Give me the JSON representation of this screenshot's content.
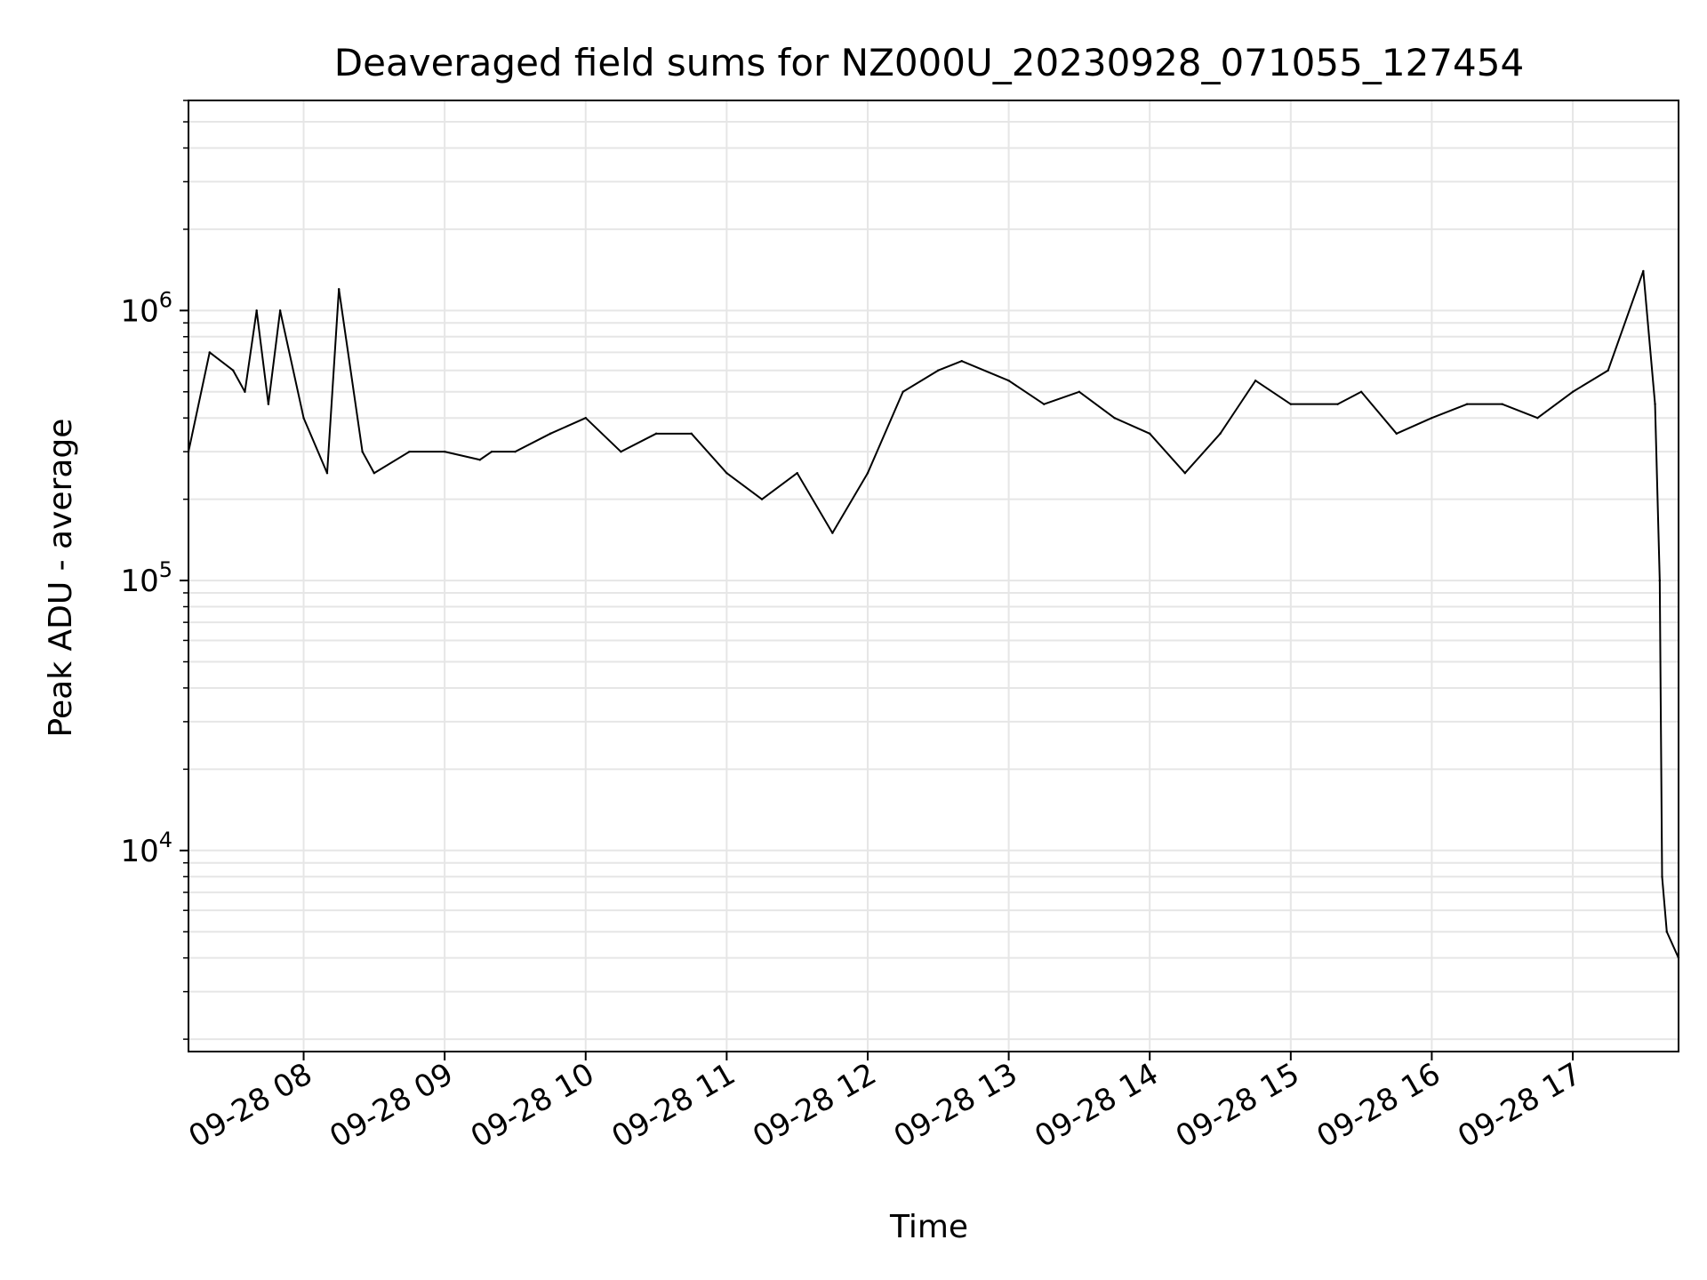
{
  "chart_data": {
    "type": "line",
    "title": "Deaveraged field sums for NZ000U_20230928_071055_127454",
    "xlabel": "Time",
    "ylabel": "Peak ADU - average",
    "yscale": "log",
    "ylim": [
      1800,
      6000000
    ],
    "xlim": [
      "2023-09-28 07:11",
      "2023-09-28 17:45"
    ],
    "grid": true,
    "line_color": "#000000",
    "grid_color": "#e6e6e6",
    "x_ticks": [
      {
        "t": "2023-09-28 08:00",
        "label": "09-28 08"
      },
      {
        "t": "2023-09-28 09:00",
        "label": "09-28 09"
      },
      {
        "t": "2023-09-28 10:00",
        "label": "09-28 10"
      },
      {
        "t": "2023-09-28 11:00",
        "label": "09-28 11"
      },
      {
        "t": "2023-09-28 12:00",
        "label": "09-28 12"
      },
      {
        "t": "2023-09-28 13:00",
        "label": "09-28 13"
      },
      {
        "t": "2023-09-28 14:00",
        "label": "09-28 14"
      },
      {
        "t": "2023-09-28 15:00",
        "label": "09-28 15"
      },
      {
        "t": "2023-09-28 16:00",
        "label": "09-28 16"
      },
      {
        "t": "2023-09-28 17:00",
        "label": "09-28 17"
      }
    ],
    "y_ticks": [
      {
        "value": 10000,
        "base": "10",
        "exp": "4"
      },
      {
        "value": 100000,
        "base": "10",
        "exp": "5"
      },
      {
        "value": 1000000,
        "base": "10",
        "exp": "6"
      }
    ],
    "series": [
      {
        "x": [
          "2023-09-28 07:11",
          "2023-09-28 07:20",
          "2023-09-28 07:30",
          "2023-09-28 07:35",
          "2023-09-28 07:40",
          "2023-09-28 07:45",
          "2023-09-28 07:50",
          "2023-09-28 08:00",
          "2023-09-28 08:10",
          "2023-09-28 08:15",
          "2023-09-28 08:25",
          "2023-09-28 08:30",
          "2023-09-28 08:45",
          "2023-09-28 09:00",
          "2023-09-28 09:15",
          "2023-09-28 09:20",
          "2023-09-28 09:30",
          "2023-09-28 09:45",
          "2023-09-28 10:00",
          "2023-09-28 10:15",
          "2023-09-28 10:30",
          "2023-09-28 10:45",
          "2023-09-28 11:00",
          "2023-09-28 11:15",
          "2023-09-28 11:30",
          "2023-09-28 11:45",
          "2023-09-28 12:00",
          "2023-09-28 12:15",
          "2023-09-28 12:30",
          "2023-09-28 12:40",
          "2023-09-28 13:00",
          "2023-09-28 13:15",
          "2023-09-28 13:30",
          "2023-09-28 13:45",
          "2023-09-28 14:00",
          "2023-09-28 14:15",
          "2023-09-28 14:30",
          "2023-09-28 14:45",
          "2023-09-28 15:00",
          "2023-09-28 15:20",
          "2023-09-28 15:30",
          "2023-09-28 15:45",
          "2023-09-28 16:00",
          "2023-09-28 16:15",
          "2023-09-28 16:30",
          "2023-09-28 16:45",
          "2023-09-28 17:00",
          "2023-09-28 17:15",
          "2023-09-28 17:30",
          "2023-09-28 17:35",
          "2023-09-28 17:37",
          "2023-09-28 17:38",
          "2023-09-28 17:40",
          "2023-09-28 17:45"
        ],
        "y": [
          300000,
          700000,
          600000,
          500000,
          1000000,
          450000,
          1000000,
          400000,
          250000,
          1200000,
          300000,
          250000,
          300000,
          300000,
          280000,
          300000,
          300000,
          350000,
          400000,
          300000,
          350000,
          350000,
          250000,
          200000,
          250000,
          150000,
          250000,
          500000,
          600000,
          650000,
          550000,
          450000,
          500000,
          400000,
          350000,
          250000,
          350000,
          550000,
          450000,
          450000,
          500000,
          350000,
          400000,
          450000,
          450000,
          400000,
          500000,
          600000,
          1400000,
          450000,
          100000,
          8000,
          5000,
          4000
        ]
      }
    ]
  }
}
